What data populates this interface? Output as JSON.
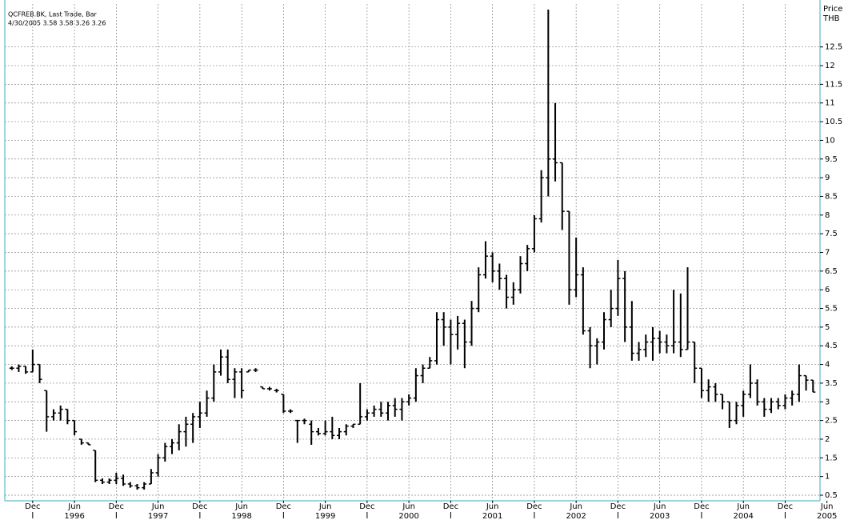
{
  "chart_data": {
    "type": "ohlc",
    "title": "QCFREB.BK, Last Trade, Bar",
    "subtitle": "4/30/2005 3.58 3.58 3.26 3.26",
    "y_axis_label": [
      "Price",
      "THB"
    ],
    "color": "#000000",
    "grid": true,
    "ylim": [
      0.35,
      13.65
    ],
    "yticks": [
      0.5,
      1,
      1.5,
      2,
      2.5,
      3,
      3.5,
      4,
      4.5,
      5,
      5.5,
      6,
      6.5,
      7,
      7.5,
      8,
      8.5,
      9,
      9.5,
      10,
      10.5,
      11,
      11.5,
      12,
      12.5
    ],
    "xlim": [
      "1995-08",
      "2005-05"
    ],
    "xticks": [
      {
        "value": "1995-12",
        "label": "Dec"
      },
      {
        "value": "1996-06",
        "label": "Jun"
      },
      {
        "value": "1996-12",
        "label": "Dec"
      },
      {
        "value": "1997-06",
        "label": "Jun"
      },
      {
        "value": "1997-12",
        "label": "Dec"
      },
      {
        "value": "1998-06",
        "label": "Jun"
      },
      {
        "value": "1998-12",
        "label": "Dec"
      },
      {
        "value": "1999-06",
        "label": "Jun"
      },
      {
        "value": "1999-12",
        "label": "Dec"
      },
      {
        "value": "2000-06",
        "label": "Jun"
      },
      {
        "value": "2000-12",
        "label": "Dec"
      },
      {
        "value": "2001-06",
        "label": "Jun"
      },
      {
        "value": "2001-12",
        "label": "Dec"
      },
      {
        "value": "2002-06",
        "label": "Jun"
      },
      {
        "value": "2002-12",
        "label": "Dec"
      },
      {
        "value": "2003-06",
        "label": "Jun"
      },
      {
        "value": "2003-12",
        "label": "Dec"
      },
      {
        "value": "2004-06",
        "label": "Jun"
      },
      {
        "value": "2004-12",
        "label": "Dec"
      },
      {
        "value": "2005-06",
        "label": "Jun"
      }
    ],
    "year_labels": [
      {
        "value": "1996-06",
        "label": "1996"
      },
      {
        "value": "1997-06",
        "label": "1997"
      },
      {
        "value": "1998-06",
        "label": "1998"
      },
      {
        "value": "1999-06",
        "label": "1999"
      },
      {
        "value": "2000-06",
        "label": "2000"
      },
      {
        "value": "2001-06",
        "label": "2001"
      },
      {
        "value": "2002-06",
        "label": "2002"
      },
      {
        "value": "2003-06",
        "label": "2003"
      },
      {
        "value": "2004-06",
        "label": "2004"
      },
      {
        "value": "2005-06",
        "label": "2005"
      }
    ],
    "x": [
      "1995-09",
      "1995-10",
      "1995-11",
      "1995-12",
      "1996-01",
      "1996-02",
      "1996-03",
      "1996-04",
      "1996-05",
      "1996-06",
      "1996-07",
      "1996-08",
      "1996-09",
      "1996-10",
      "1996-11",
      "1996-12",
      "1997-01",
      "1997-02",
      "1997-03",
      "1997-04",
      "1997-05",
      "1997-06",
      "1997-07",
      "1997-08",
      "1997-09",
      "1997-10",
      "1997-11",
      "1997-12",
      "1998-01",
      "1998-02",
      "1998-03",
      "1998-04",
      "1998-05",
      "1998-06",
      "1998-07",
      "1998-08",
      "1998-09",
      "1998-10",
      "1998-11",
      "1998-12",
      "1999-01",
      "1999-02",
      "1999-03",
      "1999-04",
      "1999-05",
      "1999-06",
      "1999-07",
      "1999-08",
      "1999-09",
      "1999-10",
      "1999-11",
      "1999-12",
      "2000-01",
      "2000-02",
      "2000-03",
      "2000-04",
      "2000-05",
      "2000-06",
      "2000-07",
      "2000-08",
      "2000-09",
      "2000-10",
      "2000-11",
      "2000-12",
      "2001-01",
      "2001-02",
      "2001-03",
      "2001-04",
      "2001-05",
      "2001-06",
      "2001-07",
      "2001-08",
      "2001-09",
      "2001-10",
      "2001-11",
      "2001-12",
      "2002-01",
      "2002-02",
      "2002-03",
      "2002-04",
      "2002-05",
      "2002-06",
      "2002-07",
      "2002-08",
      "2002-09",
      "2002-10",
      "2002-11",
      "2002-12",
      "2003-01",
      "2003-02",
      "2003-03",
      "2003-04",
      "2003-05",
      "2003-06",
      "2003-07",
      "2003-08",
      "2003-09",
      "2003-10",
      "2003-11",
      "2003-12",
      "2004-01",
      "2004-02",
      "2004-03",
      "2004-04",
      "2004-05",
      "2004-06",
      "2004-07",
      "2004-08",
      "2004-09",
      "2004-10",
      "2004-11",
      "2004-12",
      "2005-01",
      "2005-02",
      "2005-03",
      "2005-04"
    ],
    "open": [
      3.9,
      3.9,
      3.95,
      3.8,
      4.0,
      3.3,
      2.6,
      2.7,
      2.8,
      2.5,
      2.0,
      1.9,
      1.7,
      0.9,
      0.85,
      0.9,
      0.95,
      0.8,
      0.75,
      0.7,
      0.8,
      1.1,
      1.5,
      1.8,
      1.9,
      2.2,
      2.4,
      2.6,
      2.7,
      3.1,
      3.8,
      4.2,
      3.6,
      3.8,
      3.8,
      3.85,
      3.4,
      3.35,
      3.3,
      3.2,
      2.75,
      2.5,
      2.5,
      2.4,
      2.2,
      2.15,
      2.2,
      2.1,
      2.2,
      2.35,
      2.4,
      2.6,
      2.7,
      2.8,
      2.7,
      2.9,
      2.8,
      3.0,
      3.1,
      3.7,
      3.9,
      4.1,
      5.2,
      5.0,
      4.8,
      5.1,
      4.6,
      5.5,
      6.4,
      6.9,
      6.5,
      6.3,
      5.8,
      6.0,
      6.7,
      7.1,
      7.9,
      9.0,
      9.5,
      9.4,
      8.1,
      6.0,
      6.4,
      4.9,
      4.5,
      4.6,
      5.2,
      5.5,
      6.3,
      5.0,
      4.3,
      4.4,
      4.6,
      4.7,
      4.6,
      4.5,
      4.6,
      4.4,
      4.6,
      3.9,
      3.3,
      3.4,
      3.2,
      3.0,
      2.5,
      2.9,
      3.2,
      3.5,
      3.0,
      2.8,
      3.0,
      2.9,
      3.1,
      3.2,
      3.7,
      3.58
    ],
    "high": [
      3.95,
      4.0,
      3.95,
      4.4,
      4.0,
      3.3,
      2.8,
      2.9,
      2.8,
      2.5,
      2.0,
      1.9,
      1.7,
      0.95,
      0.95,
      1.1,
      1.05,
      0.85,
      0.8,
      0.85,
      1.2,
      1.6,
      1.9,
      2.0,
      2.4,
      2.6,
      2.7,
      3.0,
      3.3,
      4.0,
      4.4,
      4.4,
      3.9,
      3.9,
      3.85,
      3.9,
      3.4,
      3.4,
      3.35,
      3.2,
      2.8,
      2.5,
      2.55,
      2.5,
      2.3,
      2.5,
      2.6,
      2.3,
      2.4,
      2.4,
      3.5,
      2.8,
      2.9,
      3.0,
      3.0,
      3.1,
      3.1,
      3.2,
      3.9,
      4.0,
      4.2,
      5.4,
      5.4,
      5.2,
      5.3,
      5.2,
      5.7,
      6.6,
      7.3,
      7.0,
      6.7,
      6.4,
      6.2,
      6.9,
      7.2,
      8.0,
      9.2,
      13.5,
      11.0,
      9.4,
      8.1,
      7.4,
      6.6,
      5.0,
      4.7,
      5.4,
      6.0,
      6.8,
      6.5,
      5.7,
      4.6,
      4.8,
      5.0,
      4.9,
      4.8,
      6.0,
      5.9,
      6.6,
      4.6,
      3.9,
      3.6,
      3.5,
      3.2,
      3.0,
      3.0,
      3.3,
      4.0,
      3.6,
      3.1,
      3.1,
      3.1,
      3.2,
      3.3,
      4.0,
      3.7,
      3.58
    ],
    "low": [
      3.85,
      3.8,
      3.75,
      3.8,
      3.5,
      2.2,
      2.5,
      2.5,
      2.4,
      2.1,
      1.85,
      1.85,
      0.85,
      0.8,
      0.8,
      0.8,
      0.75,
      0.7,
      0.65,
      0.65,
      0.8,
      1.0,
      1.4,
      1.6,
      1.7,
      1.8,
      1.9,
      2.3,
      2.6,
      3.0,
      3.7,
      3.5,
      3.1,
      3.1,
      3.8,
      3.8,
      3.35,
      3.3,
      3.25,
      2.7,
      2.7,
      1.9,
      2.4,
      1.85,
      2.1,
      2.1,
      2.0,
      2.0,
      2.1,
      2.3,
      2.4,
      2.5,
      2.6,
      2.6,
      2.5,
      2.6,
      2.5,
      2.9,
      3.0,
      3.5,
      3.9,
      4.0,
      4.5,
      4.0,
      4.4,
      3.9,
      4.5,
      5.4,
      6.3,
      6.2,
      6.0,
      5.5,
      5.6,
      5.9,
      6.5,
      7.0,
      7.8,
      8.5,
      8.9,
      7.6,
      5.6,
      5.8,
      4.8,
      3.9,
      4.0,
      4.4,
      5.0,
      5.3,
      4.6,
      4.1,
      4.1,
      4.2,
      4.1,
      4.3,
      4.3,
      4.3,
      4.2,
      4.4,
      3.5,
      3.1,
      3.0,
      3.0,
      2.8,
      2.3,
      2.4,
      2.6,
      3.1,
      2.9,
      2.6,
      2.7,
      2.8,
      2.8,
      2.9,
      3.0,
      3.3,
      3.26
    ],
    "close": [
      3.9,
      3.95,
      3.8,
      4.0,
      3.6,
      2.6,
      2.7,
      2.8,
      2.5,
      2.2,
      1.9,
      1.85,
      0.9,
      0.85,
      0.9,
      0.95,
      0.8,
      0.75,
      0.7,
      0.8,
      1.1,
      1.5,
      1.8,
      1.9,
      2.2,
      2.4,
      2.6,
      2.7,
      3.1,
      3.8,
      4.2,
      3.6,
      3.8,
      3.3,
      3.85,
      3.85,
      3.35,
      3.35,
      3.3,
      2.75,
      2.75,
      2.5,
      2.5,
      2.2,
      2.15,
      2.2,
      2.1,
      2.2,
      2.35,
      2.4,
      2.6,
      2.7,
      2.8,
      2.7,
      2.9,
      2.8,
      3.0,
      3.1,
      3.7,
      3.9,
      4.1,
      5.2,
      5.0,
      4.8,
      5.1,
      4.6,
      5.5,
      6.4,
      6.9,
      6.5,
      6.3,
      5.8,
      6.0,
      6.7,
      7.1,
      7.9,
      9.0,
      9.5,
      9.4,
      8.1,
      6.0,
      6.4,
      4.9,
      4.5,
      4.6,
      5.2,
      5.5,
      6.3,
      5.0,
      4.3,
      4.4,
      4.6,
      4.7,
      4.6,
      4.5,
      4.6,
      4.4,
      4.6,
      3.9,
      3.3,
      3.4,
      3.2,
      3.0,
      2.5,
      2.9,
      3.2,
      3.5,
      3.0,
      2.8,
      3.0,
      2.9,
      3.1,
      3.2,
      3.7,
      3.58,
      3.26
    ]
  }
}
